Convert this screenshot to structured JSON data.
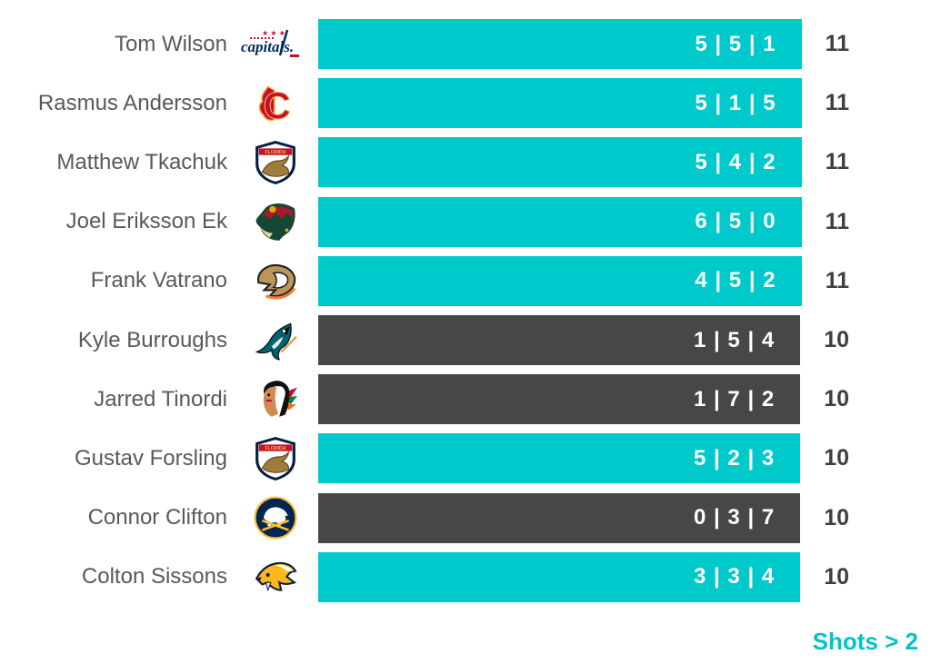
{
  "chart_data": {
    "type": "bar",
    "title": "",
    "xlabel": "",
    "ylabel": "",
    "xmax": 11,
    "grid": false,
    "legend_position": "none",
    "footer_label": "Shots > 2",
    "value_format": "shots per game, last 3 games (most recent first), separated by |",
    "rows": [
      {
        "player": "Tom Wilson",
        "team": "Washington Capitals",
        "values": [
          5,
          5,
          1
        ],
        "label": "5 | 5 | 1",
        "total": 11,
        "highlight": true
      },
      {
        "player": "Rasmus Andersson",
        "team": "Calgary Flames",
        "values": [
          5,
          1,
          5
        ],
        "label": "5 | 1 | 5",
        "total": 11,
        "highlight": true
      },
      {
        "player": "Matthew Tkachuk",
        "team": "Florida Panthers",
        "values": [
          5,
          4,
          2
        ],
        "label": "5 | 4 | 2",
        "total": 11,
        "highlight": true
      },
      {
        "player": "Joel Eriksson Ek",
        "team": "Minnesota Wild",
        "values": [
          6,
          5,
          0
        ],
        "label": "6 | 5 | 0",
        "total": 11,
        "highlight": true
      },
      {
        "player": "Frank Vatrano",
        "team": "Anaheim Ducks",
        "values": [
          4,
          5,
          2
        ],
        "label": "4 | 5 | 2",
        "total": 11,
        "highlight": true
      },
      {
        "player": "Kyle Burroughs",
        "team": "San Jose Sharks",
        "values": [
          1,
          5,
          4
        ],
        "label": "1 | 5 | 4",
        "total": 10,
        "highlight": false
      },
      {
        "player": "Jarred Tinordi",
        "team": "Chicago Blackhawks",
        "values": [
          1,
          7,
          2
        ],
        "label": "1 | 7 | 2",
        "total": 10,
        "highlight": false
      },
      {
        "player": "Gustav Forsling",
        "team": "Florida Panthers",
        "values": [
          5,
          2,
          3
        ],
        "label": "5 | 2 | 3",
        "total": 10,
        "highlight": true
      },
      {
        "player": "Connor Clifton",
        "team": "Buffalo Sabres",
        "values": [
          0,
          3,
          7
        ],
        "label": "0 | 3 | 7",
        "total": 10,
        "highlight": false
      },
      {
        "player": "Colton Sissons",
        "team": "Nashville Predators",
        "values": [
          3,
          3,
          4
        ],
        "label": "3 | 3 | 4",
        "total": 10,
        "highlight": true
      }
    ]
  },
  "colors": {
    "highlight": "#00C9CC",
    "muted": "#474747",
    "value_text": "#FFFFFF",
    "name_text": "#595959",
    "total_text": "#3F3F3F",
    "footer_text": "#00C4C9"
  }
}
